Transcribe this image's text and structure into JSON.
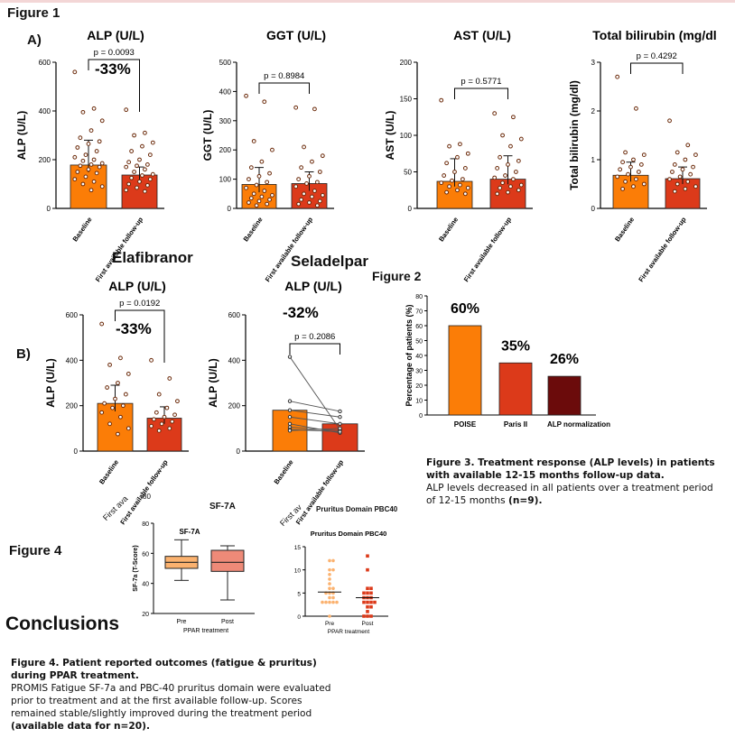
{
  "figure1_label": "Figure 1",
  "panel_a": "A)",
  "panel_b": "B)",
  "drug_elafibranor": "Elafibranor",
  "drug_seladelpar": "Seladelpar",
  "figure2_label": "Figure 2",
  "figure4_label": "Figure 4",
  "conclusions": "Conclusions",
  "caption3": {
    "title": "Figure 3. Treatment response (ALP levels) in patients with available 12-15 months follow-up data.",
    "body1": "ALP levels decreased in all patients over a treatment period of 12-15 months ",
    "body2": "(n=9)."
  },
  "caption4": {
    "title": "Figure 4. Patient reported outcomes (fatigue & pruritus) during PPAR treatment.",
    "body1": "PROMIS Fatigue SF-7a and PBC-40 pruritus domain were evaluated prior to treatment and  at the first available follow-up. Scores remained stable/slightly improved during the treatment period ",
    "body2": "(available data for n=20)."
  },
  "colors": {
    "baseline": "#fb7d07",
    "followup": "#dc3a1a",
    "alp_norm": "#6b0b0b",
    "pre": "#fbb26f",
    "post": "#ee8a78"
  },
  "chart_data": [
    {
      "id": "alp_a",
      "type": "bar",
      "title": "ALP (U/L)",
      "ylabel": "ALP (U/L)",
      "categories": [
        "Baseline",
        "First available follow-up"
      ],
      "values": [
        178,
        137
      ],
      "errors": [
        [
          148,
          280
        ],
        [
          118,
          170
        ]
      ],
      "ylim": [
        0,
        600
      ],
      "yticks": [
        "0",
        "200",
        "400",
        "600"
      ],
      "p": "p = 0.0093",
      "pct": "-33%",
      "points": [
        [
          560,
          410,
          395,
          360,
          320,
          290,
          275,
          265,
          250,
          235,
          220,
          210,
          200,
          195,
          185,
          180,
          175,
          170,
          160,
          150,
          145,
          130,
          120,
          110,
          100,
          90,
          75
        ],
        [
          405,
          310,
          300,
          270,
          255,
          235,
          220,
          200,
          190,
          180,
          175,
          170,
          160,
          150,
          140,
          135,
          125,
          120,
          110,
          100,
          95,
          85,
          75,
          70
        ]
      ]
    },
    {
      "id": "ggt_a",
      "type": "bar",
      "title": "GGT (U/L)",
      "ylabel": "GGT (U/L)",
      "categories": [
        "Baseline",
        "First available follow-up"
      ],
      "values": [
        82,
        85
      ],
      "errors": [
        [
          55,
          140
        ],
        [
          60,
          125
        ]
      ],
      "ylim": [
        0,
        500
      ],
      "yticks": [
        "0",
        "100",
        "200",
        "300",
        "400",
        "500"
      ],
      "p": "p = 0.8984",
      "points": [
        [
          385,
          365,
          230,
          200,
          160,
          140,
          120,
          110,
          100,
          90,
          80,
          70,
          60,
          50,
          45,
          40,
          35,
          30,
          25,
          20,
          15,
          10
        ],
        [
          345,
          340,
          210,
          180,
          160,
          140,
          125,
          110,
          100,
          90,
          85,
          75,
          60,
          50,
          45,
          40,
          30,
          25,
          20,
          15,
          10
        ]
      ]
    },
    {
      "id": "ast_a",
      "type": "bar",
      "title": "AST (U/L)",
      "ylabel": "AST (U/L)",
      "categories": [
        "Baseline",
        "First available follow-up"
      ],
      "values": [
        37,
        40
      ],
      "errors": [
        [
          30,
          68
        ],
        [
          33,
          72
        ]
      ],
      "ylim": [
        0,
        200
      ],
      "yticks": [
        "0",
        "50",
        "100",
        "150",
        "200"
      ],
      "p": "p = 0.5771",
      "points": [
        [
          148,
          88,
          85,
          75,
          70,
          62,
          55,
          50,
          45,
          40,
          38,
          35,
          32,
          30,
          28,
          25,
          22,
          20
        ],
        [
          130,
          125,
          100,
          95,
          85,
          70,
          65,
          60,
          55,
          50,
          45,
          42,
          40,
          35,
          32,
          30,
          28,
          25,
          22,
          20
        ]
      ]
    },
    {
      "id": "bili_a",
      "type": "bar",
      "title": "Total bilirubin (mg/dl",
      "ylabel": "Total bilirubin  (mg/dl)",
      "categories": [
        "Baseline",
        "First available follow-up"
      ],
      "values": [
        0.68,
        0.61
      ],
      "errors": [
        [
          0.55,
          0.95
        ],
        [
          0.5,
          0.85
        ]
      ],
      "ylim": [
        0,
        3
      ],
      "yticks": [
        "0",
        "1",
        "2",
        "3"
      ],
      "p": "p = 0.4292",
      "points": [
        [
          2.7,
          2.05,
          1.15,
          1.1,
          1.0,
          0.95,
          0.9,
          0.85,
          0.8,
          0.75,
          0.7,
          0.65,
          0.6,
          0.55,
          0.5,
          0.45,
          0.4
        ],
        [
          1.8,
          1.3,
          1.15,
          1.1,
          1.0,
          0.9,
          0.85,
          0.8,
          0.75,
          0.7,
          0.65,
          0.6,
          0.55,
          0.5,
          0.45,
          0.4,
          0.35
        ]
      ]
    },
    {
      "id": "alp_elaf",
      "type": "bar",
      "title": "ALP (U/L)",
      "ylabel": "ALP (U/L)",
      "categories": [
        "Baseline",
        "First available follow-up"
      ],
      "values": [
        210,
        145
      ],
      "errors": [
        [
          175,
          290
        ],
        [
          120,
          195
        ]
      ],
      "ylim": [
        0,
        600
      ],
      "yticks": [
        "0",
        "200",
        "400",
        "600"
      ],
      "p": "p = 0.0192",
      "pct": "-33%",
      "points": [
        [
          560,
          410,
          380,
          340,
          300,
          280,
          250,
          230,
          210,
          200,
          190,
          170,
          150,
          120,
          100,
          75
        ],
        [
          400,
          320,
          250,
          220,
          190,
          170,
          160,
          150,
          140,
          130,
          120,
          110,
          100,
          90
        ]
      ]
    },
    {
      "id": "alp_sela",
      "type": "bar",
      "title": "ALP (U/L)",
      "ylabel": "ALP (U/L)",
      "categories": [
        "Baseline",
        "First available follow-up"
      ],
      "values": [
        180,
        120
      ],
      "ylim": [
        0,
        600
      ],
      "yticks": [
        "0",
        "200",
        "400",
        "600"
      ],
      "p": "p = 0.2086",
      "pct": "-32%",
      "pairs": [
        [
          415,
          95
        ],
        [
          220,
          175
        ],
        [
          180,
          150
        ],
        [
          150,
          120
        ],
        [
          120,
          80
        ],
        [
          105,
          90
        ],
        [
          95,
          85
        ],
        [
          90,
          100
        ]
      ]
    },
    {
      "id": "fig2",
      "type": "bar",
      "ylabel": "Percentage of patients (%)",
      "categories": [
        "POISE",
        "Paris II",
        "ALP normalization"
      ],
      "values": [
        60,
        35,
        26
      ],
      "labels": [
        "60%",
        "35%",
        "26%"
      ],
      "ylim": [
        0,
        80
      ],
      "yticks": [
        "0",
        "10",
        "20",
        "30",
        "40",
        "50",
        "60",
        "70",
        "80"
      ]
    },
    {
      "id": "sf7a",
      "type": "box",
      "title": "SF-7A",
      "ylabel": "SF-7a (T-Score)",
      "xlabel": "PPAR treatment",
      "categories": [
        "Pre",
        "Post"
      ],
      "boxes": [
        [
          42,
          50,
          54,
          58,
          69
        ],
        [
          29,
          48,
          54,
          62,
          65
        ]
      ],
      "ylim": [
        20,
        80
      ],
      "yticks": [
        "20",
        "40",
        "60",
        "80"
      ]
    },
    {
      "id": "pbc40",
      "type": "scatter",
      "title": "Pruritus Domain PBC40",
      "xlabel": "PPAR treatment",
      "categories": [
        "Pre",
        "Post"
      ],
      "means": [
        5.2,
        4.0
      ],
      "points": [
        [
          12,
          12,
          10,
          10,
          9,
          8,
          7,
          6,
          6,
          5,
          5,
          5,
          4,
          4,
          3,
          3,
          3,
          3,
          3,
          0
        ],
        [
          13,
          10,
          6,
          6,
          5,
          5,
          5,
          4,
          4,
          4,
          3,
          3,
          3,
          3,
          2,
          2,
          1,
          0,
          0,
          0
        ]
      ],
      "ylim": [
        0,
        15
      ],
      "yticks": [
        "0",
        "5",
        "10",
        "15"
      ]
    }
  ],
  "fragments": {
    "alp_title_frag": "ALP (U/L)",
    "seladelpar_cut": "Pruritus Domain PBC40",
    "first_av1": "First ava",
    "first_av2": "First av",
    "small80": "80"
  }
}
